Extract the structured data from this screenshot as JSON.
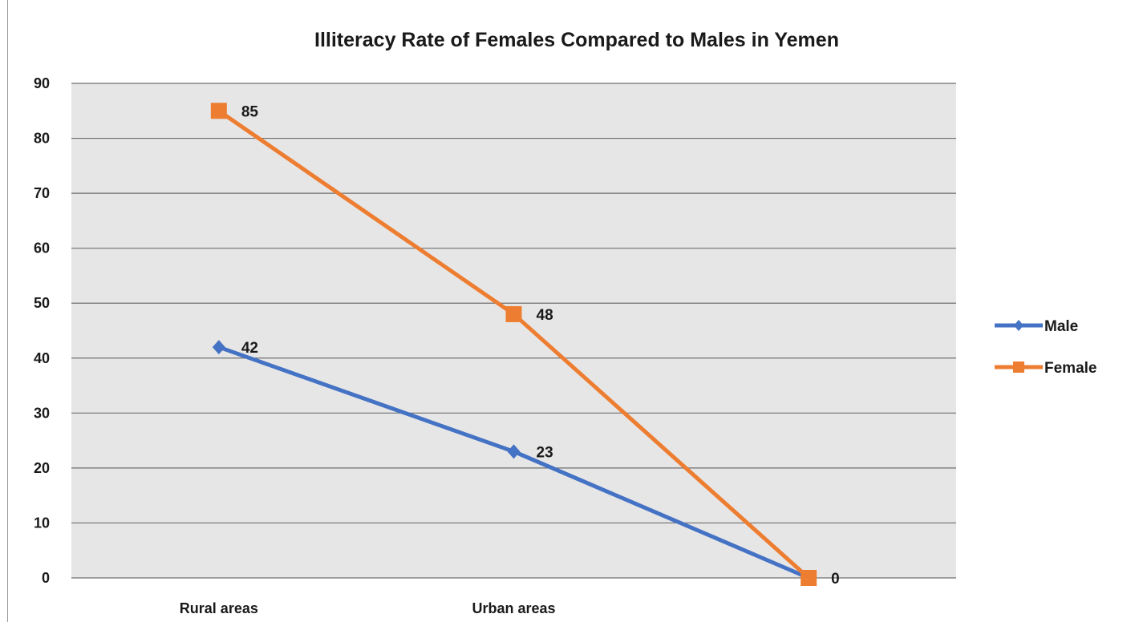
{
  "chart_data": {
    "type": "line",
    "title": "Illiteracy Rate of Females Compared to Males in Yemen",
    "xlabel": "",
    "ylabel": "",
    "categories": [
      "Rural areas",
      "Urban areas",
      ""
    ],
    "ylim": [
      0,
      90
    ],
    "yticks": [
      0,
      10,
      20,
      30,
      40,
      50,
      60,
      70,
      80,
      90
    ],
    "grid": true,
    "legend_position": "right",
    "series": [
      {
        "name": "Male",
        "values": [
          42,
          23,
          0
        ],
        "data_labels": [
          "42",
          "23",
          ""
        ],
        "color": "#4472C4",
        "marker": "diamond"
      },
      {
        "name": "Female",
        "values": [
          85,
          48,
          0
        ],
        "data_labels": [
          "85",
          "48",
          "0"
        ],
        "color": "#ED7D31",
        "marker": "square"
      }
    ],
    "colors": {
      "plot_background": "#E7E6E6",
      "gridline": "#6f6f6f"
    }
  }
}
